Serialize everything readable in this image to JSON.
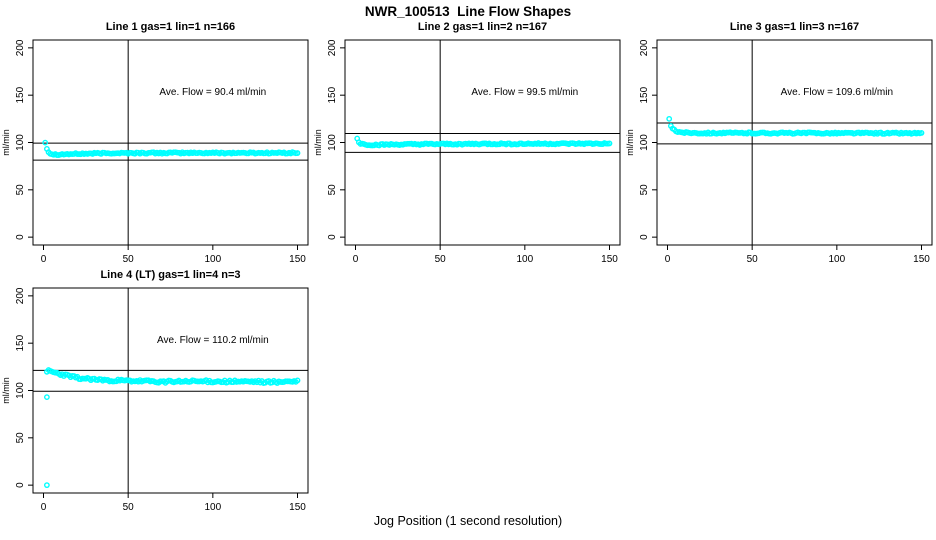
{
  "header": {
    "title": "NWR_100513  Line Flow Shapes"
  },
  "footer": {
    "xlabel": "Jog Position (1 second resolution)"
  },
  "colors": {
    "background": "#ffffff",
    "axis": "#000000",
    "points": "#00ffff"
  },
  "chart_data": [
    {
      "type": "scatter",
      "title": "Line 1 gas=1 lin=1 n=166",
      "n": 166,
      "annotation": "Ave. Flow =  90.4  ml/min",
      "ave_flow": 90.4,
      "ylabel": "ml/min",
      "x_ticks": [
        0,
        50,
        100,
        150
      ],
      "y_ticks": [
        0,
        50,
        100,
        150,
        200
      ],
      "xlim": [
        -6.2,
        156.2
      ],
      "ylim": [
        -8.3,
        208.3
      ],
      "vline_x": 50,
      "hlines": [
        99.4,
        81.4
      ],
      "x_start": 1,
      "x_end": 150,
      "noise": 0.8,
      "profile": [
        [
          1,
          100
        ],
        [
          2,
          94
        ],
        [
          3,
          90
        ],
        [
          4,
          88.5
        ],
        [
          6,
          87.5
        ],
        [
          10,
          87.5
        ],
        [
          20,
          88
        ],
        [
          40,
          88.8
        ],
        [
          80,
          89
        ],
        [
          150,
          89
        ]
      ],
      "outliers": [],
      "point_color": "#00ffff"
    },
    {
      "type": "scatter",
      "title": "Line 2 gas=1 lin=2 n=167",
      "n": 167,
      "annotation": "Ave. Flow =  99.5  ml/min",
      "ave_flow": 99.5,
      "ylabel": "ml/min",
      "x_ticks": [
        0,
        50,
        100,
        150
      ],
      "y_ticks": [
        0,
        50,
        100,
        150,
        200
      ],
      "xlim": [
        -6.2,
        156.2
      ],
      "ylim": [
        -8.3,
        208.3
      ],
      "vline_x": 50,
      "hlines": [
        109.5,
        89.6
      ],
      "x_start": 1,
      "x_end": 150,
      "noise": 0.8,
      "profile": [
        [
          1,
          104
        ],
        [
          2,
          100.5
        ],
        [
          3,
          99
        ],
        [
          5,
          98
        ],
        [
          10,
          97.5
        ],
        [
          20,
          97.8
        ],
        [
          40,
          98.2
        ],
        [
          80,
          98.6
        ],
        [
          150,
          98.8
        ]
      ],
      "outliers": [],
      "point_color": "#00ffff"
    },
    {
      "type": "scatter",
      "title": "Line 3 gas=1 lin=3 n=167",
      "n": 167,
      "annotation": "Ave. Flow =  109.6  ml/min",
      "ave_flow": 109.6,
      "ylabel": "ml/min",
      "x_ticks": [
        0,
        50,
        100,
        150
      ],
      "y_ticks": [
        0,
        50,
        100,
        150,
        200
      ],
      "xlim": [
        -6.2,
        156.2
      ],
      "ylim": [
        -8.3,
        208.3
      ],
      "vline_x": 50,
      "hlines": [
        120.6,
        98.6
      ],
      "x_start": 2,
      "x_end": 150,
      "noise": 0.8,
      "profile": [
        [
          2,
          117
        ],
        [
          3,
          114.5
        ],
        [
          4,
          113
        ],
        [
          6,
          111.5
        ],
        [
          10,
          110.5
        ],
        [
          20,
          110
        ],
        [
          60,
          110
        ],
        [
          150,
          109.8
        ]
      ],
      "outliers": [
        [
          1,
          125
        ]
      ],
      "point_color": "#00ffff"
    },
    {
      "type": "scatter",
      "title": "Line 4 (LT) gas=1 lin=4 n=3",
      "n": 3,
      "annotation": "Ave. Flow =  110.2  ml/min",
      "ave_flow": 110.2,
      "ylabel": "ml/min",
      "x_ticks": [
        0,
        50,
        100,
        150
      ],
      "y_ticks": [
        0,
        50,
        100,
        150,
        200
      ],
      "xlim": [
        -6.2,
        156.2
      ],
      "ylim": [
        -8.3,
        208.3
      ],
      "vline_x": 50,
      "hlines": [
        121.2,
        99.2
      ],
      "x_start": 2,
      "x_end": 150,
      "noise": 1.3,
      "profile": [
        [
          2,
          121
        ],
        [
          5,
          119.5
        ],
        [
          10,
          117
        ],
        [
          20,
          113.5
        ],
        [
          30,
          111.5
        ],
        [
          45,
          110.2
        ],
        [
          70,
          109.3
        ],
        [
          100,
          109.8
        ],
        [
          130,
          109
        ],
        [
          150,
          109.5
        ]
      ],
      "outliers": [
        [
          2,
          93
        ],
        [
          2,
          0
        ]
      ],
      "point_color": "#00ffff"
    }
  ]
}
